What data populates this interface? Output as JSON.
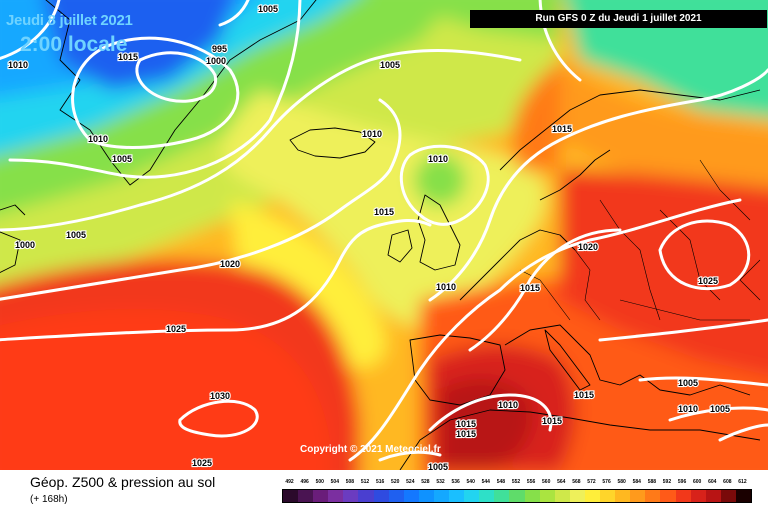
{
  "header": {
    "date": "Jeudi 8 juillet 2021",
    "time": "2:00 locale",
    "run": "Run GFS 0 Z du Jeudi 1 juillet 2021"
  },
  "footer": {
    "title": "Géop. Z500 & pression au sol",
    "lead_time": "(+ 168h)",
    "copyright": "Copyright © 2021 Meteociel.fr"
  },
  "legend": {
    "values": [
      492,
      496,
      500,
      504,
      508,
      512,
      516,
      520,
      524,
      528,
      532,
      536,
      540,
      544,
      548,
      552,
      556,
      560,
      564,
      568,
      572,
      576,
      580,
      584,
      588,
      592,
      596,
      600,
      604,
      608,
      612
    ],
    "colors": [
      "#2b0a2b",
      "#4a1452",
      "#6a1d7a",
      "#7b2fa0",
      "#6b3cc0",
      "#4a3fd0",
      "#2f4be0",
      "#1f60f0",
      "#1478ff",
      "#0f92ff",
      "#14a8ff",
      "#1abfff",
      "#22d4f0",
      "#2ee0c8",
      "#40e09a",
      "#5fdc6a",
      "#86e04a",
      "#aae440",
      "#cfe84a",
      "#eef05a",
      "#ffee3a",
      "#ffd52a",
      "#ffb820",
      "#ff9a1c",
      "#ff7a18",
      "#ff5a18",
      "#f2381a",
      "#d8221a",
      "#b81414",
      "#7a0a0a",
      "#1a0000"
    ]
  },
  "isobars": [
    {
      "label": "1005",
      "cls": "lab"
    },
    {
      "label": "995",
      "cls": "lab"
    },
    {
      "label": "1000",
      "cls": "lab"
    },
    {
      "label": "1010",
      "cls": "lab"
    },
    {
      "label": "1005",
      "cls": "lab"
    },
    {
      "label": "1015",
      "cls": "lab"
    },
    {
      "label": "1010",
      "cls": "lab"
    },
    {
      "label": "1005",
      "cls": "lab"
    },
    {
      "label": "1010",
      "cls": "lab"
    },
    {
      "label": "1015",
      "cls": "lab"
    },
    {
      "label": "1010",
      "cls": "lab"
    },
    {
      "label": "1005",
      "cls": "lab"
    },
    {
      "label": "1000",
      "cls": "lab"
    },
    {
      "label": "1020",
      "cls": "lab"
    },
    {
      "label": "1020",
      "cls": "lab"
    },
    {
      "label": "1025",
      "cls": "lab"
    },
    {
      "label": "1015",
      "cls": "lab"
    },
    {
      "label": "1025",
      "cls": "lab"
    },
    {
      "label": "1030",
      "cls": "lab"
    },
    {
      "label": "1010",
      "cls": "lab"
    },
    {
      "label": "1015",
      "cls": "lab"
    },
    {
      "label": "1015",
      "cls": "lab"
    },
    {
      "label": "1015",
      "cls": "lab"
    },
    {
      "label": "1015",
      "cls": "lab"
    },
    {
      "label": "1010",
      "cls": "lab"
    },
    {
      "label": "1015",
      "cls": "lab"
    },
    {
      "label": "1005",
      "cls": "lab"
    },
    {
      "label": "1025",
      "cls": "lab"
    },
    {
      "label": "1010",
      "cls": "lab"
    },
    {
      "label": "1005",
      "cls": "lab"
    },
    {
      "label": "1005",
      "cls": "lab"
    }
  ]
}
